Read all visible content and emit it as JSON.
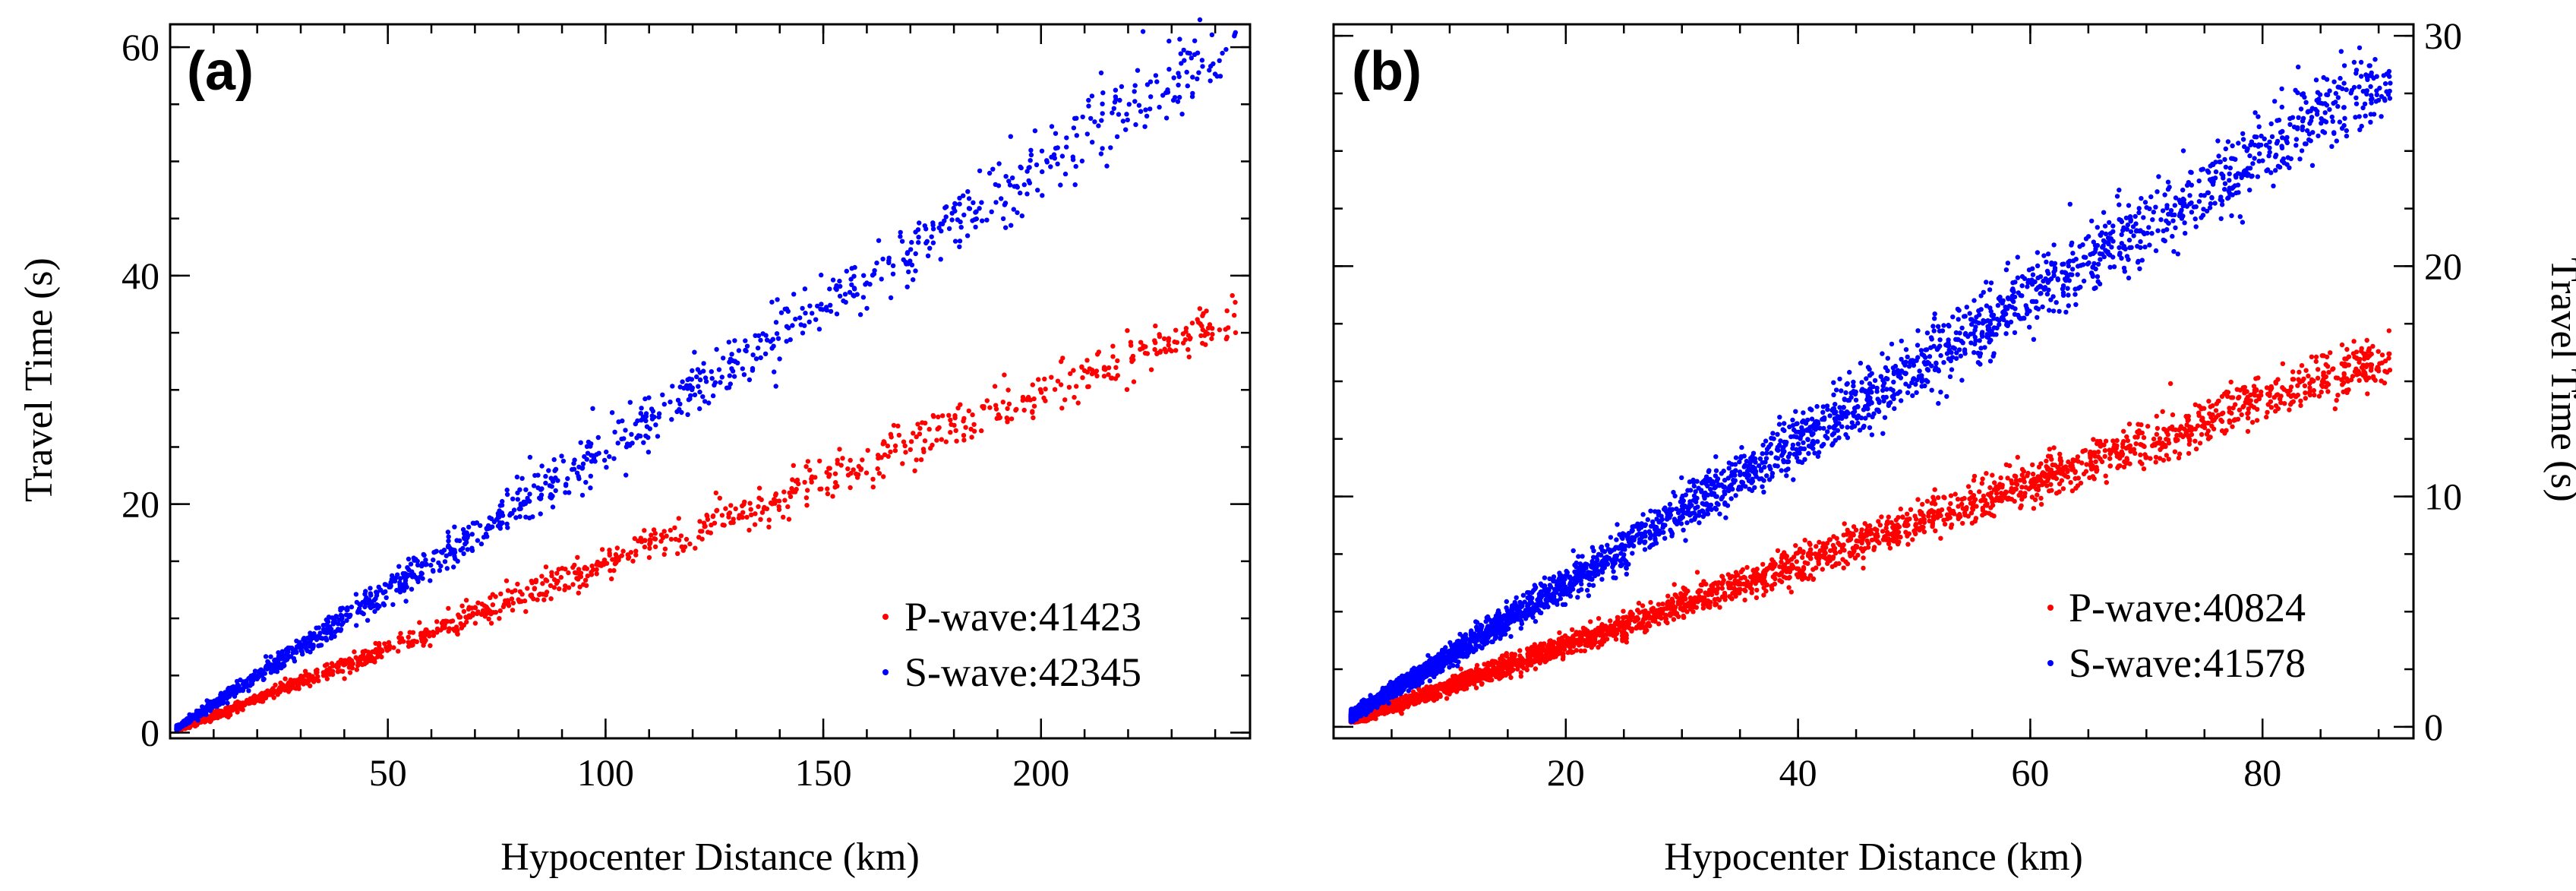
{
  "chart_data": [
    {
      "type": "scatter",
      "panel_label": "(a)",
      "xlabel": "Hypocenter Distance (km)",
      "ylabel": "Travel Time (s)",
      "xlim": [
        0,
        248
      ],
      "ylim": [
        -0.5,
        62
      ],
      "xticks": [
        50,
        100,
        150,
        200
      ],
      "yticks": [
        0,
        20,
        40,
        60
      ],
      "ylabel_side": "left",
      "legend_position": "bottom-right",
      "series": [
        {
          "name": "P-wave:41423",
          "color": "#ff0000",
          "slope": 0.148,
          "max_x": 245,
          "count": 41423
        },
        {
          "name": "S-wave:42345",
          "color": "#0000ff",
          "slope": 0.249,
          "max_x": 245,
          "count": 42345
        }
      ]
    },
    {
      "type": "scatter",
      "panel_label": "(b)",
      "xlabel": "Hypocenter Distance (km)",
      "ylabel": "Travel Time (s)",
      "xlim": [
        0,
        93
      ],
      "ylim": [
        -0.5,
        30.5
      ],
      "xticks": [
        20,
        40,
        60,
        80
      ],
      "yticks": [
        0,
        10,
        20,
        30
      ],
      "ylabel_side": "right",
      "legend_position": "bottom-right",
      "series": [
        {
          "name": "P-wave:40824",
          "color": "#ff0000",
          "slope": 0.177,
          "max_x": 91,
          "count": 40824
        },
        {
          "name": "S-wave:41578",
          "color": "#0000ff",
          "slope": 0.311,
          "max_x": 91,
          "count": 41578
        }
      ]
    }
  ]
}
